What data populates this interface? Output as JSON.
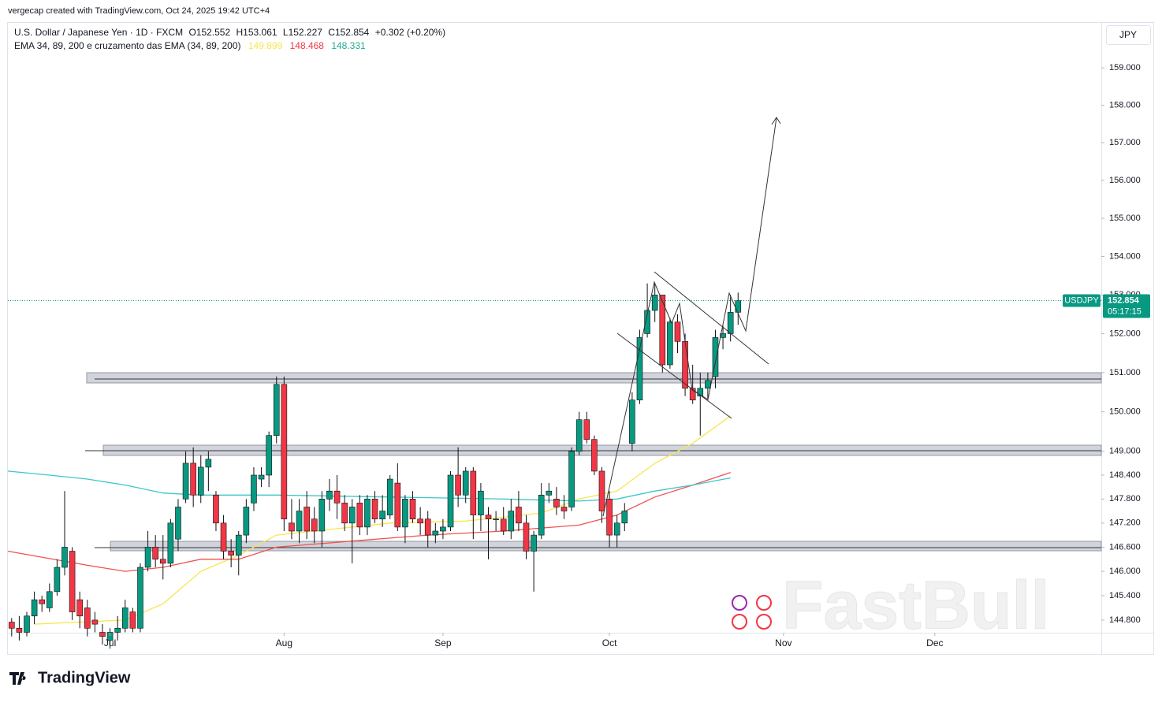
{
  "header": {
    "credit": "vergecap created with TradingView.com, Oct 24, 2025 19:42 UTC+4",
    "brand": "TradingView",
    "watermark": "FastBull"
  },
  "chart_data": {
    "type": "candlestick",
    "symbol": "U.S. Dollar / Japanese Yen · 1D · FXCM",
    "ohlc_labels": [
      "O152.552",
      "H153.061",
      "L152.227",
      "C152.854"
    ],
    "change": "+0.302 (+0.20%)",
    "indicator": "EMA 34, 89, 200 e cruzamento das EMA (34, 89, 200)",
    "currency": "JPY",
    "ticker": "USDJPY",
    "countdown": "05:17:15",
    "log_scale": true,
    "up_color": "#089981",
    "down_color": "#f23645",
    "x": [
      0,
      1,
      2,
      3,
      4,
      5,
      6,
      7,
      8,
      9,
      10,
      11,
      12,
      13,
      14,
      15,
      16,
      17,
      18,
      19,
      20,
      21,
      22,
      23,
      24,
      25,
      26,
      27,
      28,
      29,
      30,
      31,
      32,
      33,
      34,
      35,
      36,
      37,
      38,
      39,
      40,
      41,
      42,
      43,
      44,
      45,
      46,
      47,
      48,
      49,
      50,
      51,
      52,
      53,
      54,
      55,
      56,
      57,
      58,
      59,
      60,
      61,
      62,
      63,
      64,
      65,
      66,
      67,
      68,
      69,
      70,
      71,
      72,
      73,
      74,
      75,
      76,
      77,
      78,
      79,
      80,
      81,
      82,
      83,
      84,
      85,
      86,
      87,
      88,
      89,
      90,
      91,
      92,
      93,
      94,
      95,
      96
    ],
    "open": [
      144.75,
      144.6,
      144.5,
      144.9,
      145.3,
      145.1,
      145.5,
      146.1,
      146.5,
      145.3,
      145.1,
      144.8,
      144.5,
      144.3,
      144.5,
      144.6,
      145.0,
      144.6,
      146.1,
      146.6,
      146.3,
      146.2,
      146.8,
      147.8,
      148.7,
      147.9,
      148.6,
      147.9,
      147.2,
      146.5,
      146.4,
      146.9,
      147.7,
      148.3,
      148.4,
      149.4,
      150.7,
      147.2,
      147.0,
      147.6,
      147.3,
      147.0,
      147.8,
      148.0,
      147.7,
      147.2,
      147.7,
      147.1,
      147.8,
      147.3,
      147.4,
      148.2,
      147.1,
      147.8,
      147.3,
      147.3,
      146.9,
      147.0,
      147.1,
      148.4,
      147.9,
      148.5,
      147.4,
      147.4,
      147.3,
      147.3,
      147.0,
      147.6,
      147.2,
      146.5,
      146.9,
      147.9,
      147.8,
      147.6,
      147.6,
      149.0,
      149.8,
      149.3,
      148.5,
      147.8,
      146.9,
      147.2,
      149.2,
      150.3,
      152.0,
      152.6,
      153.0,
      151.2,
      152.3,
      151.8,
      150.6,
      150.4,
      150.6,
      150.9,
      151.9,
      152.0,
      152.552
    ],
    "high": [
      144.85,
      144.9,
      145.0,
      145.5,
      145.4,
      145.7,
      146.3,
      148.0,
      146.6,
      145.5,
      145.3,
      145.0,
      144.7,
      144.6,
      144.9,
      145.3,
      145.1,
      146.2,
      147.0,
      146.9,
      146.9,
      147.3,
      147.8,
      149.0,
      149.1,
      148.9,
      149.0,
      148.0,
      147.4,
      146.8,
      147.0,
      147.8,
      148.6,
      148.6,
      149.5,
      150.9,
      150.9,
      147.8,
      147.8,
      148.0,
      147.6,
      148.0,
      148.3,
      148.4,
      147.9,
      147.8,
      147.9,
      147.9,
      148.0,
      147.9,
      148.4,
      148.7,
      147.9,
      148.0,
      147.6,
      147.5,
      147.2,
      147.3,
      148.5,
      149.1,
      148.6,
      148.6,
      148.2,
      147.6,
      147.5,
      147.6,
      147.8,
      148.0,
      147.4,
      147.0,
      148.2,
      148.2,
      148.1,
      147.9,
      149.1,
      150.0,
      150.0,
      149.4,
      148.6,
      148.0,
      147.4,
      147.7,
      150.5,
      152.1,
      153.3,
      153.3,
      153.0,
      152.4,
      152.5,
      152.0,
      151.2,
      151.0,
      151.0,
      152.1,
      152.2,
      153.0,
      153.061
    ],
    "low": [
      144.4,
      144.3,
      144.4,
      144.7,
      145.0,
      145.0,
      145.4,
      145.9,
      144.8,
      144.6,
      144.4,
      144.5,
      144.2,
      144.1,
      144.3,
      144.5,
      144.5,
      144.5,
      146.0,
      146.1,
      145.8,
      146.1,
      146.5,
      147.7,
      147.6,
      147.7,
      148.0,
      147.0,
      146.3,
      146.1,
      145.9,
      146.7,
      147.5,
      148.1,
      148.1,
      149.2,
      147.0,
      146.8,
      146.7,
      146.8,
      146.7,
      146.6,
      147.5,
      147.3,
      147.0,
      146.2,
      146.9,
      146.9,
      147.2,
      147.1,
      147.3,
      147.0,
      146.7,
      147.2,
      146.9,
      146.6,
      146.7,
      146.8,
      147.0,
      147.6,
      147.7,
      146.8,
      147.0,
      146.3,
      147.0,
      146.9,
      146.8,
      147.0,
      146.3,
      145.5,
      146.8,
      147.7,
      147.4,
      147.3,
      147.5,
      148.9,
      149.2,
      148.4,
      147.2,
      146.6,
      146.6,
      147.0,
      149.0,
      150.2,
      151.9,
      152.3,
      151.0,
      151.1,
      151.5,
      150.4,
      150.2,
      149.4,
      150.3,
      150.6,
      151.6,
      151.8,
      152.227
    ],
    "close": [
      144.6,
      144.5,
      144.9,
      145.3,
      145.2,
      145.5,
      146.1,
      146.6,
      145.0,
      144.9,
      144.6,
      144.7,
      144.4,
      144.5,
      144.6,
      145.1,
      144.6,
      146.1,
      146.6,
      146.3,
      146.2,
      147.2,
      147.6,
      148.7,
      147.9,
      148.6,
      148.8,
      147.2,
      146.5,
      146.4,
      146.9,
      147.6,
      148.4,
      148.4,
      149.4,
      150.7,
      147.3,
      147.0,
      147.5,
      147.0,
      147.0,
      147.8,
      148.0,
      147.7,
      147.2,
      147.6,
      147.1,
      147.8,
      147.3,
      147.5,
      148.3,
      147.1,
      147.8,
      147.3,
      147.2,
      146.9,
      147.0,
      147.1,
      148.4,
      147.9,
      148.5,
      147.4,
      148.0,
      147.3,
      147.3,
      147.0,
      147.5,
      147.2,
      146.5,
      146.9,
      147.9,
      148.0,
      147.6,
      147.5,
      149.0,
      149.8,
      149.3,
      148.5,
      147.5,
      146.9,
      147.2,
      147.5,
      150.3,
      151.9,
      152.6,
      153.0,
      151.2,
      152.3,
      151.8,
      150.6,
      150.3,
      150.6,
      150.8,
      151.9,
      152.0,
      152.55,
      152.854
    ],
    "series": [
      {
        "color": "#f7e64f",
        "last": 149.899,
        "x": [
          3,
          15,
          20,
          25,
          30,
          35,
          40,
          50,
          60,
          70,
          75,
          80,
          85,
          90,
          95
        ],
        "values": [
          144.7,
          144.8,
          145.2,
          146.0,
          146.4,
          146.9,
          147.0,
          147.2,
          147.25,
          147.45,
          147.8,
          148.0,
          148.7,
          149.2,
          149.899
        ]
      },
      {
        "color": "#f05350",
        "last": 148.468,
        "x": [
          -0.5,
          10,
          15,
          20,
          25,
          30,
          35,
          45,
          55,
          65,
          75,
          80,
          85,
          90,
          95
        ],
        "values": [
          146.5,
          146.15,
          146.0,
          146.1,
          146.3,
          146.3,
          146.6,
          146.75,
          146.9,
          147.0,
          147.15,
          147.4,
          147.85,
          148.15,
          148.468
        ]
      },
      {
        "color": "#3dc6c8",
        "last": 148.331,
        "x": [
          -0.5,
          5,
          10,
          15,
          20,
          25,
          35,
          50,
          65,
          75,
          80,
          85,
          90,
          95
        ],
        "values": [
          148.5,
          148.4,
          148.3,
          148.15,
          147.95,
          147.9,
          147.9,
          147.85,
          147.8,
          147.75,
          147.8,
          148.0,
          148.15,
          148.331
        ]
      }
    ],
    "ylim": [
      144.49,
      160.24
    ],
    "yticks": [
      {
        "value": 159,
        "label": "159.000"
      },
      {
        "value": 158,
        "label": "158.000"
      },
      {
        "value": 157,
        "label": "157.000"
      },
      {
        "value": 156,
        "label": "156.000"
      },
      {
        "value": 155,
        "label": "155.000"
      },
      {
        "value": 154,
        "label": "154.000"
      },
      {
        "value": 153,
        "label": "153.000"
      },
      {
        "value": 152,
        "label": "152.000"
      },
      {
        "value": 151,
        "label": "151.000"
      },
      {
        "value": 150,
        "label": "150.000"
      },
      {
        "value": 149,
        "label": "149.000"
      },
      {
        "value": 148.4,
        "label": "148.400"
      },
      {
        "value": 147.8,
        "label": "147.800"
      },
      {
        "value": 147.2,
        "label": "147.200"
      },
      {
        "value": 146.6,
        "label": "146.600"
      },
      {
        "value": 146,
        "label": "146.000"
      },
      {
        "value": 145.4,
        "label": "145.400"
      },
      {
        "value": 144.8,
        "label": "144.800"
      }
    ],
    "xlim": [
      -0.5,
      144
    ],
    "xticks": [
      {
        "value": 13,
        "label": "Jul"
      },
      {
        "value": 36,
        "label": "Aug"
      },
      {
        "value": 57,
        "label": "Sep"
      },
      {
        "value": 79,
        "label": "Oct"
      },
      {
        "value": 102,
        "label": "Nov"
      },
      {
        "value": 122,
        "label": "Dec"
      }
    ]
  }
}
